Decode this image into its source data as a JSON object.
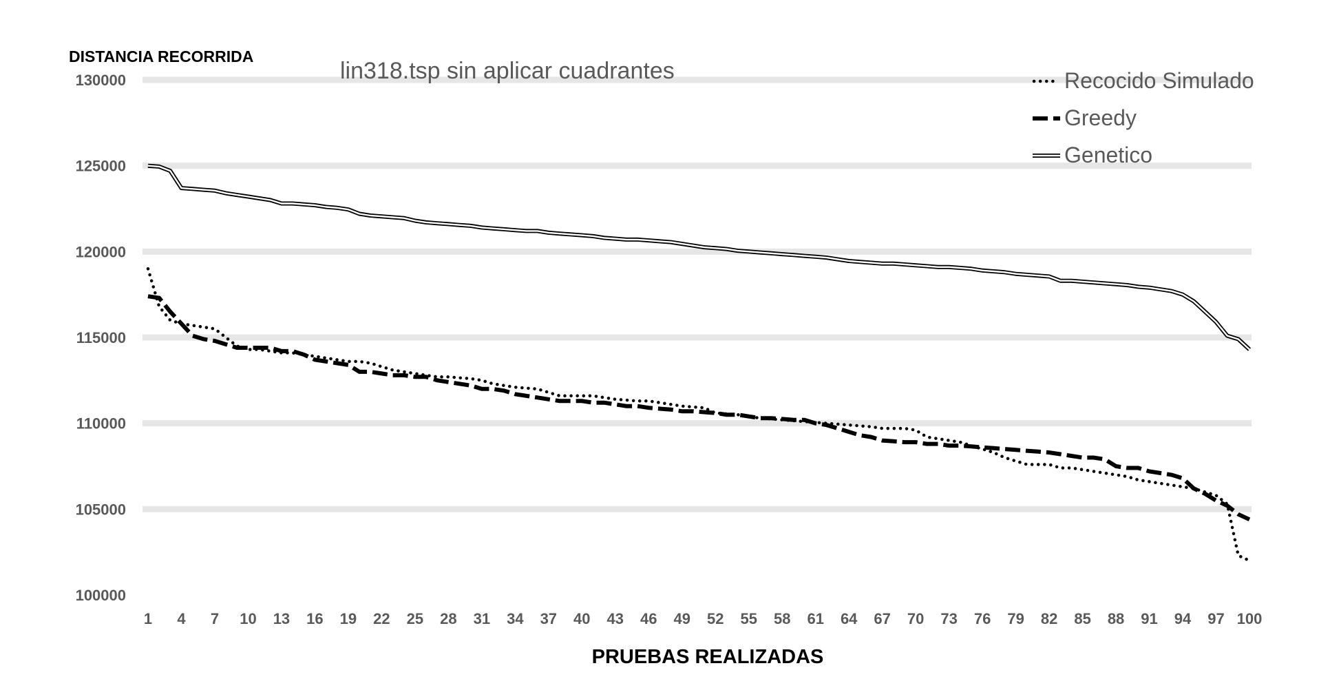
{
  "chart_data": {
    "type": "line",
    "title": "lin318.tsp sin aplicar cuadrantes",
    "xlabel": "PRUEBAS REALIZADAS",
    "ylabel": "DISTANCIA RECORRIDA",
    "ylim": [
      100000,
      130000
    ],
    "xlim": [
      1,
      100
    ],
    "y_ticks": [
      "100000",
      "105000",
      "110000",
      "115000",
      "120000",
      "125000",
      "130000"
    ],
    "x_ticks": [
      "1",
      "4",
      "7",
      "10",
      "13",
      "16",
      "19",
      "22",
      "25",
      "28",
      "31",
      "34",
      "37",
      "40",
      "43",
      "46",
      "49",
      "52",
      "55",
      "58",
      "61",
      "64",
      "67",
      "70",
      "73",
      "76",
      "79",
      "82",
      "85",
      "88",
      "91",
      "94",
      "97",
      "100"
    ],
    "grid": true,
    "legend_position": "top-right",
    "series": [
      {
        "name": "Recocido Simulado",
        "style": "dotted",
        "color": "#000000",
        "points": [
          [
            1,
            119000
          ],
          [
            2,
            116800
          ],
          [
            3,
            116000
          ],
          [
            4,
            115800
          ],
          [
            5,
            115700
          ],
          [
            6,
            115600
          ],
          [
            7,
            115500
          ],
          [
            8,
            115000
          ],
          [
            9,
            114500
          ],
          [
            10,
            114300
          ],
          [
            11,
            114300
          ],
          [
            12,
            114200
          ],
          [
            13,
            114100
          ],
          [
            14,
            114100
          ],
          [
            15,
            114000
          ],
          [
            16,
            113900
          ],
          [
            17,
            113800
          ],
          [
            18,
            113700
          ],
          [
            19,
            113600
          ],
          [
            20,
            113600
          ],
          [
            21,
            113500
          ],
          [
            22,
            113300
          ],
          [
            23,
            113100
          ],
          [
            24,
            113000
          ],
          [
            25,
            112900
          ],
          [
            26,
            112800
          ],
          [
            27,
            112700
          ],
          [
            28,
            112700
          ],
          [
            29,
            112650
          ],
          [
            30,
            112600
          ],
          [
            31,
            112500
          ],
          [
            32,
            112300
          ],
          [
            33,
            112200
          ],
          [
            34,
            112100
          ],
          [
            35,
            112050
          ],
          [
            36,
            112000
          ],
          [
            37,
            111800
          ],
          [
            38,
            111600
          ],
          [
            39,
            111600
          ],
          [
            40,
            111600
          ],
          [
            41,
            111600
          ],
          [
            42,
            111500
          ],
          [
            43,
            111400
          ],
          [
            44,
            111350
          ],
          [
            45,
            111300
          ],
          [
            46,
            111300
          ],
          [
            47,
            111200
          ],
          [
            48,
            111100
          ],
          [
            49,
            111000
          ],
          [
            50,
            110950
          ],
          [
            51,
            110900
          ],
          [
            52,
            110600
          ],
          [
            53,
            110550
          ],
          [
            54,
            110500
          ],
          [
            55,
            110400
          ],
          [
            56,
            110300
          ],
          [
            57,
            110250
          ],
          [
            58,
            110200
          ],
          [
            59,
            110150
          ],
          [
            60,
            110100
          ],
          [
            61,
            110050
          ],
          [
            62,
            110000
          ],
          [
            63,
            109950
          ],
          [
            64,
            109900
          ],
          [
            65,
            109850
          ],
          [
            66,
            109800
          ],
          [
            67,
            109700
          ],
          [
            68,
            109700
          ],
          [
            69,
            109700
          ],
          [
            70,
            109600
          ],
          [
            71,
            109200
          ],
          [
            72,
            109100
          ],
          [
            73,
            109000
          ],
          [
            74,
            108900
          ],
          [
            75,
            108700
          ],
          [
            76,
            108500
          ],
          [
            77,
            108300
          ],
          [
            78,
            108000
          ],
          [
            79,
            107800
          ],
          [
            80,
            107600
          ],
          [
            81,
            107600
          ],
          [
            82,
            107600
          ],
          [
            83,
            107400
          ],
          [
            84,
            107400
          ],
          [
            85,
            107300
          ],
          [
            86,
            107200
          ],
          [
            87,
            107100
          ],
          [
            88,
            107000
          ],
          [
            89,
            106900
          ],
          [
            90,
            106700
          ],
          [
            91,
            106600
          ],
          [
            92,
            106500
          ],
          [
            93,
            106400
          ],
          [
            94,
            106300
          ],
          [
            95,
            106200
          ],
          [
            96,
            106000
          ],
          [
            97,
            105800
          ],
          [
            98,
            105300
          ],
          [
            99,
            102300
          ],
          [
            100,
            102000
          ]
        ]
      },
      {
        "name": "Greedy",
        "style": "dashed",
        "color": "#000000",
        "points": [
          [
            1,
            117400
          ],
          [
            2,
            117300
          ],
          [
            3,
            116500
          ],
          [
            4,
            115800
          ],
          [
            5,
            115100
          ],
          [
            6,
            114900
          ],
          [
            7,
            114800
          ],
          [
            8,
            114600
          ],
          [
            9,
            114400
          ],
          [
            10,
            114400
          ],
          [
            11,
            114400
          ],
          [
            12,
            114400
          ],
          [
            13,
            114200
          ],
          [
            14,
            114200
          ],
          [
            15,
            114000
          ],
          [
            16,
            113700
          ],
          [
            17,
            113600
          ],
          [
            18,
            113500
          ],
          [
            19,
            113400
          ],
          [
            20,
            113000
          ],
          [
            21,
            113000
          ],
          [
            22,
            112900
          ],
          [
            23,
            112800
          ],
          [
            24,
            112800
          ],
          [
            25,
            112700
          ],
          [
            26,
            112700
          ],
          [
            27,
            112500
          ],
          [
            28,
            112400
          ],
          [
            29,
            112300
          ],
          [
            30,
            112200
          ],
          [
            31,
            112000
          ],
          [
            32,
            112000
          ],
          [
            33,
            111900
          ],
          [
            34,
            111700
          ],
          [
            35,
            111600
          ],
          [
            36,
            111500
          ],
          [
            37,
            111400
          ],
          [
            38,
            111300
          ],
          [
            39,
            111300
          ],
          [
            40,
            111300
          ],
          [
            41,
            111200
          ],
          [
            42,
            111200
          ],
          [
            43,
            111100
          ],
          [
            44,
            111000
          ],
          [
            45,
            111000
          ],
          [
            46,
            110900
          ],
          [
            47,
            110850
          ],
          [
            48,
            110800
          ],
          [
            49,
            110700
          ],
          [
            50,
            110700
          ],
          [
            51,
            110650
          ],
          [
            52,
            110600
          ],
          [
            53,
            110500
          ],
          [
            54,
            110500
          ],
          [
            55,
            110400
          ],
          [
            56,
            110300
          ],
          [
            57,
            110300
          ],
          [
            58,
            110250
          ],
          [
            59,
            110200
          ],
          [
            60,
            110200
          ],
          [
            61,
            110000
          ],
          [
            62,
            109900
          ],
          [
            63,
            109700
          ],
          [
            64,
            109500
          ],
          [
            65,
            109300
          ],
          [
            66,
            109200
          ],
          [
            67,
            109000
          ],
          [
            68,
            108950
          ],
          [
            69,
            108900
          ],
          [
            70,
            108900
          ],
          [
            71,
            108800
          ],
          [
            72,
            108800
          ],
          [
            73,
            108700
          ],
          [
            74,
            108700
          ],
          [
            75,
            108650
          ],
          [
            76,
            108600
          ],
          [
            77,
            108550
          ],
          [
            78,
            108500
          ],
          [
            79,
            108450
          ],
          [
            80,
            108400
          ],
          [
            81,
            108350
          ],
          [
            82,
            108300
          ],
          [
            83,
            108200
          ],
          [
            84,
            108100
          ],
          [
            85,
            108000
          ],
          [
            86,
            108000
          ],
          [
            87,
            107900
          ],
          [
            88,
            107500
          ],
          [
            89,
            107400
          ],
          [
            90,
            107400
          ],
          [
            91,
            107200
          ],
          [
            92,
            107100
          ],
          [
            93,
            107000
          ],
          [
            94,
            106800
          ],
          [
            95,
            106200
          ],
          [
            96,
            105900
          ],
          [
            97,
            105500
          ],
          [
            98,
            105200
          ],
          [
            99,
            104700
          ],
          [
            100,
            104400
          ]
        ]
      },
      {
        "name": "Genetico",
        "style": "double",
        "color": "#000000",
        "points": [
          [
            1,
            125000
          ],
          [
            2,
            124950
          ],
          [
            3,
            124700
          ],
          [
            4,
            123700
          ],
          [
            5,
            123650
          ],
          [
            6,
            123600
          ],
          [
            7,
            123550
          ],
          [
            8,
            123400
          ],
          [
            9,
            123300
          ],
          [
            10,
            123200
          ],
          [
            11,
            123100
          ],
          [
            12,
            123000
          ],
          [
            13,
            122800
          ],
          [
            14,
            122800
          ],
          [
            15,
            122750
          ],
          [
            16,
            122700
          ],
          [
            17,
            122600
          ],
          [
            18,
            122550
          ],
          [
            19,
            122450
          ],
          [
            20,
            122200
          ],
          [
            21,
            122100
          ],
          [
            22,
            122050
          ],
          [
            23,
            122000
          ],
          [
            24,
            121950
          ],
          [
            25,
            121800
          ],
          [
            26,
            121700
          ],
          [
            27,
            121650
          ],
          [
            28,
            121600
          ],
          [
            29,
            121550
          ],
          [
            30,
            121500
          ],
          [
            31,
            121400
          ],
          [
            32,
            121350
          ],
          [
            33,
            121300
          ],
          [
            34,
            121250
          ],
          [
            35,
            121200
          ],
          [
            36,
            121200
          ],
          [
            37,
            121100
          ],
          [
            38,
            121050
          ],
          [
            39,
            121000
          ],
          [
            40,
            120950
          ],
          [
            41,
            120900
          ],
          [
            42,
            120800
          ],
          [
            43,
            120750
          ],
          [
            44,
            120700
          ],
          [
            45,
            120700
          ],
          [
            46,
            120650
          ],
          [
            47,
            120600
          ],
          [
            48,
            120550
          ],
          [
            49,
            120450
          ],
          [
            50,
            120350
          ],
          [
            51,
            120250
          ],
          [
            52,
            120200
          ],
          [
            53,
            120150
          ],
          [
            54,
            120050
          ],
          [
            55,
            120000
          ],
          [
            56,
            119950
          ],
          [
            57,
            119900
          ],
          [
            58,
            119850
          ],
          [
            59,
            119800
          ],
          [
            60,
            119750
          ],
          [
            61,
            119700
          ],
          [
            62,
            119650
          ],
          [
            63,
            119550
          ],
          [
            64,
            119450
          ],
          [
            65,
            119400
          ],
          [
            66,
            119350
          ],
          [
            67,
            119300
          ],
          [
            68,
            119300
          ],
          [
            69,
            119250
          ],
          [
            70,
            119200
          ],
          [
            71,
            119150
          ],
          [
            72,
            119100
          ],
          [
            73,
            119100
          ],
          [
            74,
            119050
          ],
          [
            75,
            119000
          ],
          [
            76,
            118900
          ],
          [
            77,
            118850
          ],
          [
            78,
            118800
          ],
          [
            79,
            118700
          ],
          [
            80,
            118650
          ],
          [
            81,
            118600
          ],
          [
            82,
            118550
          ],
          [
            83,
            118300
          ],
          [
            84,
            118300
          ],
          [
            85,
            118250
          ],
          [
            86,
            118200
          ],
          [
            87,
            118150
          ],
          [
            88,
            118100
          ],
          [
            89,
            118050
          ],
          [
            90,
            117950
          ],
          [
            91,
            117900
          ],
          [
            92,
            117800
          ],
          [
            93,
            117700
          ],
          [
            94,
            117500
          ],
          [
            95,
            117100
          ],
          [
            96,
            116500
          ],
          [
            97,
            115900
          ],
          [
            98,
            115100
          ],
          [
            99,
            114900
          ],
          [
            100,
            114300
          ]
        ]
      }
    ]
  }
}
